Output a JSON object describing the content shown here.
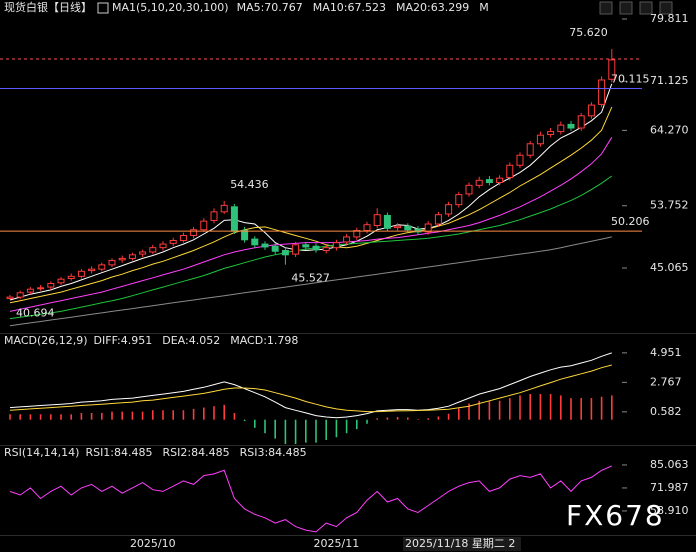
{
  "chart_data": [
    {
      "type": "candlestick",
      "title": "现货白银【日线】",
      "subtitle": "MA1(5,10,20,30,100)",
      "categories": [
        null,
        null,
        null,
        null,
        null,
        null,
        null,
        null,
        null,
        null,
        null,
        null,
        null,
        null,
        "2025/10",
        null,
        null,
        null,
        null,
        null,
        null,
        null,
        null,
        null,
        null,
        null,
        null,
        null,
        null,
        null,
        null,
        null,
        "2025/11",
        null,
        null,
        null,
        null,
        null,
        null,
        null,
        null,
        null,
        null,
        null,
        null,
        null,
        null,
        null,
        null,
        null,
        null,
        null,
        null,
        null,
        null,
        null,
        null,
        null,
        null,
        null
      ],
      "open": [
        40.8,
        41.0,
        41.7,
        42.2,
        42.4,
        43.0,
        43.6,
        43.9,
        44.7,
        44.9,
        45.5,
        46.2,
        46.4,
        47.0,
        47.3,
        47.9,
        48.5,
        48.9,
        49.6,
        50.4,
        51.7,
        52.9,
        53.6,
        50.3,
        49.1,
        48.4,
        48.1,
        47.5,
        47.0,
        48.3,
        48.1,
        47.5,
        47.9,
        48.7,
        49.4,
        50.3,
        51.0,
        52.4,
        50.7,
        50.9,
        50.5,
        50.1,
        51.2,
        52.6,
        53.9,
        55.4,
        56.6,
        57.4,
        57.0,
        57.7,
        59.4,
        60.8,
        62.4,
        63.7,
        64.1,
        65.1,
        64.6,
        66.3,
        67.9,
        71.4
      ],
      "high": [
        41.3,
        41.9,
        42.4,
        42.7,
        43.2,
        43.8,
        44.3,
        44.9,
        45.3,
        45.8,
        46.4,
        46.8,
        47.2,
        47.6,
        48.3,
        48.8,
        49.3,
        50.0,
        50.8,
        52.0,
        53.4,
        54.436,
        54.0,
        50.8,
        49.5,
        48.8,
        48.5,
        47.9,
        48.7,
        48.7,
        48.5,
        48.3,
        49.0,
        49.8,
        50.7,
        51.5,
        53.4,
        52.8,
        51.3,
        51.3,
        50.9,
        51.6,
        52.9,
        54.3,
        55.7,
        57.0,
        57.8,
        57.9,
        58.0,
        59.8,
        61.2,
        62.8,
        64.1,
        64.6,
        65.5,
        65.6,
        66.7,
        68.2,
        71.8,
        75.62
      ],
      "low": [
        40.694,
        40.7,
        41.4,
        41.9,
        42.0,
        42.7,
        43.3,
        43.6,
        44.3,
        44.6,
        45.2,
        45.8,
        46.1,
        46.6,
        47.0,
        47.5,
        48.1,
        48.6,
        49.2,
        50.1,
        51.3,
        52.6,
        49.8,
        48.6,
        47.9,
        47.6,
        47.0,
        45.527,
        46.6,
        47.6,
        47.2,
        47.1,
        47.5,
        48.3,
        49.0,
        49.9,
        50.6,
        50.2,
        50.3,
        50.0,
        49.7,
        49.7,
        50.8,
        52.2,
        53.5,
        55.0,
        56.2,
        56.6,
        56.6,
        57.3,
        59.0,
        60.4,
        62.0,
        63.3,
        63.7,
        64.2,
        64.2,
        65.9,
        67.5,
        71.0
      ],
      "close": [
        41.0,
        41.6,
        42.1,
        42.3,
        42.9,
        43.5,
        43.9,
        44.6,
        44.9,
        45.5,
        46.1,
        46.4,
        46.9,
        47.3,
        47.9,
        48.4,
        48.9,
        49.6,
        50.4,
        51.6,
        52.9,
        53.8,
        50.2,
        49.0,
        48.3,
        48.0,
        47.4,
        46.9,
        48.3,
        48.0,
        47.6,
        47.9,
        48.6,
        49.4,
        50.3,
        51.1,
        52.5,
        50.6,
        50.9,
        50.4,
        50.1,
        51.2,
        52.5,
        53.9,
        55.3,
        56.6,
        57.3,
        57.0,
        57.6,
        59.4,
        60.8,
        62.4,
        63.6,
        64.1,
        65.0,
        64.6,
        66.3,
        67.8,
        71.3,
        74.1
      ],
      "up_color": "#ff3b3b",
      "down_color": "#2fc27a",
      "series": [
        {
          "name": "MA5:70.767",
          "color": "#ffffff",
          "values": [
            40.6,
            41.0,
            41.4,
            41.7,
            42.0,
            42.5,
            42.9,
            43.4,
            43.9,
            44.4,
            44.9,
            45.4,
            45.9,
            46.4,
            46.8,
            47.3,
            47.9,
            48.4,
            49.0,
            49.8,
            50.6,
            51.7,
            51.8,
            51.4,
            51.2,
            50.0,
            48.6,
            47.9,
            47.6,
            47.5,
            47.6,
            47.7,
            48.0,
            48.3,
            48.8,
            49.5,
            50.4,
            50.7,
            51.1,
            51.0,
            50.5,
            50.6,
            51.0,
            51.7,
            52.6,
            53.7,
            55.0,
            56.0,
            56.9,
            57.6,
            58.4,
            59.4,
            60.7,
            62.1,
            63.2,
            63.9,
            64.7,
            65.6,
            66.8,
            70.767
          ]
        },
        {
          "name": "MA10:67.523",
          "color": "#ffd83a",
          "values": [
            40.2,
            40.5,
            40.8,
            41.1,
            41.4,
            41.7,
            42.1,
            42.5,
            42.9,
            43.3,
            43.8,
            44.2,
            44.7,
            45.1,
            45.6,
            46.0,
            46.5,
            47.0,
            47.5,
            48.1,
            48.7,
            49.4,
            50.0,
            50.4,
            50.7,
            50.8,
            50.4,
            50.0,
            49.6,
            49.2,
            48.8,
            48.3,
            48.0,
            47.9,
            48.1,
            48.5,
            48.9,
            49.3,
            49.7,
            50.0,
            50.2,
            50.5,
            50.9,
            51.3,
            51.9,
            52.5,
            53.2,
            54.0,
            54.8,
            55.6,
            56.5,
            57.3,
            58.1,
            59.0,
            59.9,
            60.8,
            61.8,
            62.9,
            64.3,
            67.523
          ]
        },
        {
          "name": "MA20:63.299",
          "color": "#ff40ff",
          "values": [
            39.0,
            39.3,
            39.6,
            39.9,
            40.2,
            40.5,
            40.8,
            41.1,
            41.4,
            41.7,
            42.1,
            42.5,
            42.9,
            43.3,
            43.7,
            44.1,
            44.5,
            44.9,
            45.4,
            45.9,
            46.4,
            46.9,
            47.3,
            47.6,
            47.9,
            48.1,
            48.3,
            48.4,
            48.5,
            48.6,
            48.6,
            48.6,
            48.6,
            48.7,
            48.8,
            48.9,
            49.1,
            49.2,
            49.3,
            49.5,
            49.7,
            49.9,
            50.1,
            50.4,
            50.7,
            51.0,
            51.4,
            51.9,
            52.4,
            53.0,
            53.6,
            54.3,
            55.0,
            55.8,
            56.6,
            57.5,
            58.5,
            59.6,
            61.0,
            63.299
          ]
        },
        {
          "name": "M",
          "color": "#1ec43c",
          "values": [
            38.0,
            38.2,
            38.4,
            38.6,
            38.8,
            39.0,
            39.3,
            39.6,
            39.9,
            40.2,
            40.5,
            40.8,
            41.2,
            41.6,
            42.0,
            42.4,
            42.8,
            43.2,
            43.6,
            44.0,
            44.5,
            45.0,
            45.4,
            45.8,
            46.2,
            46.6,
            46.9,
            47.2,
            47.5,
            47.7,
            47.9,
            48.1,
            48.3,
            48.4,
            48.5,
            48.6,
            48.7,
            48.8,
            48.9,
            49.0,
            49.1,
            49.2,
            49.4,
            49.6,
            49.8,
            50.1,
            50.4,
            50.7,
            51.0,
            51.4,
            51.8,
            52.3,
            52.8,
            53.3,
            53.9,
            54.5,
            55.2,
            56.0,
            56.9,
            57.9
          ]
        },
        {
          "color": "#8a8a8a",
          "values": [
            37.0,
            37.2,
            37.4,
            37.6,
            37.8,
            38.0,
            38.2,
            38.4,
            38.6,
            38.8,
            39.0,
            39.2,
            39.4,
            39.6,
            39.8,
            40.0,
            40.2,
            40.4,
            40.6,
            40.8,
            41.0,
            41.2,
            41.4,
            41.6,
            41.8,
            42.0,
            42.2,
            42.4,
            42.6,
            42.8,
            43.0,
            43.2,
            43.4,
            43.6,
            43.8,
            44.0,
            44.2,
            44.4,
            44.6,
            44.8,
            45.0,
            45.2,
            45.4,
            45.6,
            45.8,
            46.0,
            46.2,
            46.4,
            46.6,
            46.8,
            47.0,
            47.2,
            47.4,
            47.6,
            47.9,
            48.2,
            48.5,
            48.8,
            49.1,
            49.4
          ]
        }
      ],
      "hlines": [
        {
          "value": 74.23,
          "color": "#ff5050",
          "dash": true,
          "show_value": false
        },
        {
          "value": 70.115,
          "color": "#5a5aff",
          "dash": false,
          "show_value": true
        },
        {
          "value": 50.206,
          "color": "#ff8c40",
          "dash": false,
          "show_value": true
        }
      ],
      "annotations": [
        {
          "value": 75.62,
          "label": "75.620"
        },
        54.436,
        45.527,
        40.694
      ],
      "ylim": [
        36.13,
        80.51
      ],
      "yticks": [
        79.811,
        71.125,
        {
          "value": 64.27,
          "label": "64.270"
        },
        53.752,
        45.065
      ]
    },
    {
      "type": "macd",
      "title": "MACD(26,12,9)",
      "up_color": "#ff3b3b",
      "down_color": "#2fc27a",
      "series": [
        {
          "name": "DIFF:4.951",
          "color": "#ffffff",
          "style": "line",
          "values": [
            0.9,
            0.95,
            1.0,
            1.05,
            1.1,
            1.15,
            1.2,
            1.3,
            1.35,
            1.4,
            1.5,
            1.55,
            1.6,
            1.7,
            1.8,
            1.9,
            2.0,
            2.1,
            2.25,
            2.4,
            2.6,
            2.8,
            2.6,
            2.3,
            2.0,
            1.7,
            1.3,
            0.9,
            0.7,
            0.5,
            0.3,
            0.2,
            0.15,
            0.2,
            0.3,
            0.45,
            0.65,
            0.7,
            0.75,
            0.75,
            0.7,
            0.75,
            0.85,
            1.0,
            1.3,
            1.6,
            1.9,
            2.1,
            2.3,
            2.6,
            2.9,
            3.2,
            3.45,
            3.7,
            3.9,
            4.0,
            4.2,
            4.4,
            4.7,
            4.951
          ]
        },
        {
          "name": "DEA:4.052",
          "color": "#ffd83a",
          "style": "line",
          "values": [
            0.7,
            0.75,
            0.8,
            0.85,
            0.9,
            0.95,
            1.0,
            1.05,
            1.1,
            1.15,
            1.2,
            1.25,
            1.3,
            1.4,
            1.45,
            1.55,
            1.65,
            1.75,
            1.85,
            1.95,
            2.1,
            2.25,
            2.35,
            2.35,
            2.3,
            2.2,
            2.0,
            1.8,
            1.6,
            1.35,
            1.15,
            0.95,
            0.8,
            0.7,
            0.65,
            0.6,
            0.6,
            0.62,
            0.65,
            0.67,
            0.68,
            0.7,
            0.73,
            0.78,
            0.88,
            1.0,
            1.2,
            1.4,
            1.6,
            1.8,
            2.0,
            2.25,
            2.5,
            2.75,
            3.0,
            3.2,
            3.4,
            3.6,
            3.85,
            4.052
          ]
        },
        {
          "name": "MACD:1.798",
          "color": "#ff40ff",
          "style": "bar",
          "values": [
            0.4,
            0.4,
            0.4,
            0.4,
            0.4,
            0.4,
            0.4,
            0.5,
            0.5,
            0.5,
            0.6,
            0.6,
            0.6,
            0.6,
            0.7,
            0.7,
            0.7,
            0.7,
            0.8,
            0.9,
            1.0,
            1.1,
            0.5,
            -0.1,
            -0.6,
            -1.0,
            -1.4,
            -1.8,
            -1.8,
            -1.7,
            -1.7,
            -1.5,
            -1.3,
            -1.0,
            -0.7,
            -0.3,
            0.1,
            0.16,
            0.2,
            0.16,
            0.04,
            0.1,
            0.24,
            0.44,
            0.84,
            1.2,
            1.4,
            1.4,
            1.4,
            1.6,
            1.8,
            1.9,
            1.9,
            1.9,
            1.8,
            1.6,
            1.6,
            1.6,
            1.7,
            1.798
          ]
        }
      ],
      "ylim": [
        -1.8,
        6.2
      ],
      "yticks": [
        4.951,
        2.767,
        0.582
      ]
    },
    {
      "type": "rsi",
      "title": "RSI(14,14,14)",
      "series": [
        {
          "name": "RSI1:84.485",
          "color": "#ffffff"
        },
        {
          "name": "RSI2:84.485",
          "color": "#ffd83a"
        },
        {
          "name": "RSI3:84.485",
          "color": "#ff40ff",
          "values": [
            70,
            68,
            72,
            66,
            70,
            73,
            68,
            72,
            74,
            70,
            73,
            69,
            72,
            75,
            71,
            70,
            73,
            76,
            74,
            79,
            80,
            82,
            66,
            60,
            57,
            55,
            52,
            54,
            50,
            48,
            47,
            52,
            50,
            55,
            58,
            65,
            70,
            64,
            66,
            60,
            58,
            62,
            66,
            70,
            73,
            75,
            76,
            70,
            72,
            77,
            79,
            78,
            80,
            72,
            76,
            70,
            76,
            78,
            82,
            84.485
          ]
        }
      ],
      "ylim": [
        45.8,
        94.7
      ],
      "yticks": [
        85.063,
        71.987,
        {
          "value": 58.91,
          "label": "58.910"
        }
      ]
    }
  ],
  "cursor_label": "2025/11/18 星期二 2",
  "watermark": "FX678"
}
